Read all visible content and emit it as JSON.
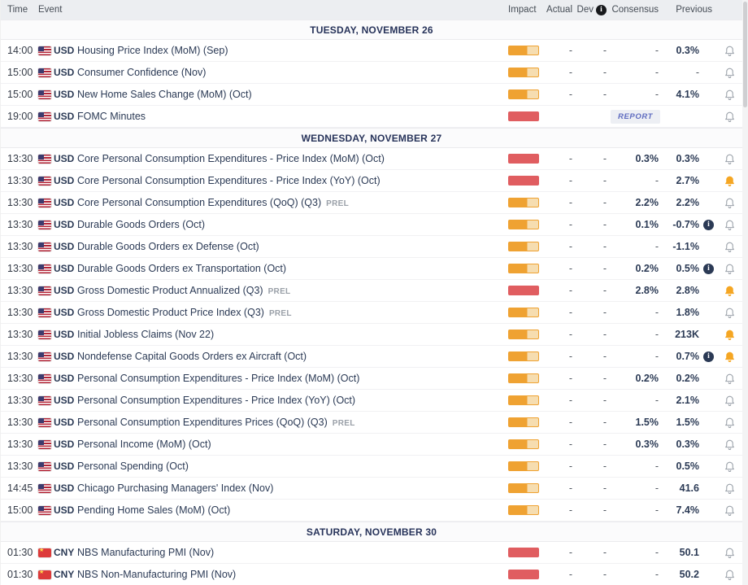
{
  "header": {
    "time": "Time",
    "event": "Event",
    "impact": "Impact",
    "actual": "Actual",
    "dev": "Dev",
    "consensus": "Consensus",
    "previous": "Previous"
  },
  "colors": {
    "impact_medium": "#efa232",
    "impact_high": "#e05d60",
    "bell_active": "#f5a623",
    "report_text": "#5f6cc0"
  },
  "sections": [
    {
      "date": "TUESDAY, NOVEMBER 26",
      "rows": [
        {
          "time": "14:00",
          "flag": "us",
          "currency": "USD",
          "event": "Housing Price Index (MoM) (Sep)",
          "impact": "medium",
          "actual": "-",
          "dev": "-",
          "consensus": "-",
          "previous": "0.3%",
          "bell": "outline"
        },
        {
          "time": "15:00",
          "flag": "us",
          "currency": "USD",
          "event": "Consumer Confidence (Nov)",
          "impact": "medium",
          "actual": "-",
          "dev": "-",
          "consensus": "-",
          "previous": "-",
          "bell": "outline"
        },
        {
          "time": "15:00",
          "flag": "us",
          "currency": "USD",
          "event": "New Home Sales Change (MoM) (Oct)",
          "impact": "medium",
          "actual": "-",
          "dev": "-",
          "consensus": "-",
          "previous": "4.1%",
          "bell": "outline"
        },
        {
          "time": "19:00",
          "flag": "us",
          "currency": "USD",
          "event": "FOMC Minutes",
          "impact": "high",
          "actual": "",
          "dev": "",
          "consensus": "REPORT",
          "report": true,
          "previous": "",
          "bell": "outline"
        }
      ]
    },
    {
      "date": "WEDNESDAY, NOVEMBER 27",
      "rows": [
        {
          "time": "13:30",
          "flag": "us",
          "currency": "USD",
          "event": "Core Personal Consumption Expenditures - Price Index (MoM) (Oct)",
          "impact": "high",
          "actual": "-",
          "dev": "-",
          "consensus": "0.3%",
          "previous": "0.3%",
          "bell": "outline"
        },
        {
          "time": "13:30",
          "flag": "us",
          "currency": "USD",
          "event": "Core Personal Consumption Expenditures - Price Index (YoY) (Oct)",
          "impact": "high",
          "actual": "-",
          "dev": "-",
          "consensus": "-",
          "previous": "2.7%",
          "bell": "active"
        },
        {
          "time": "13:30",
          "flag": "us",
          "currency": "USD",
          "event": "Core Personal Consumption Expenditures (QoQ) (Q3)",
          "suffix": "PREL",
          "impact": "medium",
          "actual": "-",
          "dev": "-",
          "consensus": "2.2%",
          "previous": "2.2%",
          "bell": "outline"
        },
        {
          "time": "13:30",
          "flag": "us",
          "currency": "USD",
          "event": "Durable Goods Orders (Oct)",
          "impact": "medium",
          "actual": "-",
          "dev": "-",
          "consensus": "0.1%",
          "previous": "-0.7%",
          "info": true,
          "bell": "outline"
        },
        {
          "time": "13:30",
          "flag": "us",
          "currency": "USD",
          "event": "Durable Goods Orders ex Defense (Oct)",
          "impact": "medium",
          "actual": "-",
          "dev": "-",
          "consensus": "-",
          "previous": "-1.1%",
          "bell": "outline"
        },
        {
          "time": "13:30",
          "flag": "us",
          "currency": "USD",
          "event": "Durable Goods Orders ex Transportation (Oct)",
          "impact": "medium",
          "actual": "-",
          "dev": "-",
          "consensus": "0.2%",
          "previous": "0.5%",
          "info": true,
          "bell": "outline"
        },
        {
          "time": "13:30",
          "flag": "us",
          "currency": "USD",
          "event": "Gross Domestic Product Annualized (Q3)",
          "suffix": "PREL",
          "impact": "high",
          "actual": "-",
          "dev": "-",
          "consensus": "2.8%",
          "previous": "2.8%",
          "bell": "active"
        },
        {
          "time": "13:30",
          "flag": "us",
          "currency": "USD",
          "event": "Gross Domestic Product Price Index (Q3)",
          "suffix": "PREL",
          "impact": "medium",
          "actual": "-",
          "dev": "-",
          "consensus": "-",
          "previous": "1.8%",
          "bell": "outline"
        },
        {
          "time": "13:30",
          "flag": "us",
          "currency": "USD",
          "event": "Initial Jobless Claims (Nov 22)",
          "impact": "medium",
          "actual": "-",
          "dev": "-",
          "consensus": "-",
          "previous": "213K",
          "bell": "active"
        },
        {
          "time": "13:30",
          "flag": "us",
          "currency": "USD",
          "event": "Nondefense Capital Goods Orders ex Aircraft (Oct)",
          "impact": "medium",
          "actual": "-",
          "dev": "-",
          "consensus": "-",
          "previous": "0.7%",
          "info": true,
          "bell": "active"
        },
        {
          "time": "13:30",
          "flag": "us",
          "currency": "USD",
          "event": "Personal Consumption Expenditures - Price Index (MoM) (Oct)",
          "impact": "medium",
          "actual": "-",
          "dev": "-",
          "consensus": "0.2%",
          "previous": "0.2%",
          "bell": "outline"
        },
        {
          "time": "13:30",
          "flag": "us",
          "currency": "USD",
          "event": "Personal Consumption Expenditures - Price Index (YoY) (Oct)",
          "impact": "medium",
          "actual": "-",
          "dev": "-",
          "consensus": "-",
          "previous": "2.1%",
          "bell": "outline"
        },
        {
          "time": "13:30",
          "flag": "us",
          "currency": "USD",
          "event": "Personal Consumption Expenditures Prices (QoQ) (Q3)",
          "suffix": "PREL",
          "impact": "medium",
          "actual": "-",
          "dev": "-",
          "consensus": "1.5%",
          "previous": "1.5%",
          "bell": "outline"
        },
        {
          "time": "13:30",
          "flag": "us",
          "currency": "USD",
          "event": "Personal Income (MoM) (Oct)",
          "impact": "medium",
          "actual": "-",
          "dev": "-",
          "consensus": "0.3%",
          "previous": "0.3%",
          "bell": "outline"
        },
        {
          "time": "13:30",
          "flag": "us",
          "currency": "USD",
          "event": "Personal Spending (Oct)",
          "impact": "medium",
          "actual": "-",
          "dev": "-",
          "consensus": "-",
          "previous": "0.5%",
          "bell": "outline"
        },
        {
          "time": "14:45",
          "flag": "us",
          "currency": "USD",
          "event": "Chicago Purchasing Managers' Index (Nov)",
          "impact": "medium",
          "actual": "-",
          "dev": "-",
          "consensus": "-",
          "previous": "41.6",
          "bell": "outline"
        },
        {
          "time": "15:00",
          "flag": "us",
          "currency": "USD",
          "event": "Pending Home Sales (MoM) (Oct)",
          "impact": "medium",
          "actual": "-",
          "dev": "-",
          "consensus": "-",
          "previous": "7.4%",
          "bell": "outline"
        }
      ]
    },
    {
      "date": "SATURDAY, NOVEMBER 30",
      "rows": [
        {
          "time": "01:30",
          "flag": "cn",
          "currency": "CNY",
          "event": "NBS Manufacturing PMI (Nov)",
          "impact": "high",
          "actual": "-",
          "dev": "-",
          "consensus": "-",
          "previous": "50.1",
          "bell": "outline"
        },
        {
          "time": "01:30",
          "flag": "cn",
          "currency": "CNY",
          "event": "NBS Non-Manufacturing PMI (Nov)",
          "impact": "high",
          "actual": "-",
          "dev": "-",
          "consensus": "-",
          "previous": "50.2",
          "bell": "outline"
        }
      ]
    }
  ]
}
